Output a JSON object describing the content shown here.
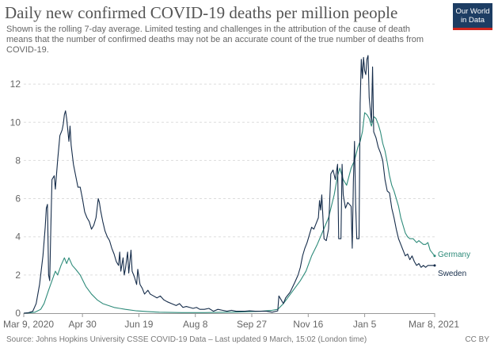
{
  "header": {
    "title": "Daily new confirmed COVID-19 deaths per million people",
    "subtitle": "Shown is the rolling 7-day average. Limited testing and challenges in the attribution of the cause of death means that the number of confirmed deaths may not be an accurate count of the true number of deaths from COVID-19.",
    "logo_line1": "Our World",
    "logo_line2": "in Data"
  },
  "footer": {
    "source": "Source: Johns Hopkins University CSSE COVID-19 Data – Last updated 9 March, 15:02 (London time)",
    "license": "CC BY"
  },
  "colors": {
    "germany": "#2e8b7a",
    "sweden": "#152c4a",
    "grid": "#dddddd",
    "axis": "#666666"
  },
  "chart_data": {
    "type": "line",
    "title": "Daily new confirmed COVID-19 deaths per million people",
    "xlabel": "",
    "ylabel": "",
    "xlim": [
      0,
      364
    ],
    "ylim": [
      0,
      13.5
    ],
    "yticks": [
      0,
      2,
      4,
      6,
      8,
      10,
      12
    ],
    "xticks": [
      {
        "day": 0,
        "label": "Mar 9, 2020"
      },
      {
        "day": 52,
        "label": "Apr 30"
      },
      {
        "day": 102,
        "label": "Jun 19"
      },
      {
        "day": 152,
        "label": "Aug 8"
      },
      {
        "day": 202,
        "label": "Sep 27"
      },
      {
        "day": 252,
        "label": "Nov 16"
      },
      {
        "day": 302,
        "label": "Jan 5"
      },
      {
        "day": 364,
        "label": "Mar 8, 2021"
      }
    ],
    "grid": "horizontal",
    "legend": "labels at line ends (right)",
    "series": [
      {
        "name": "Germany",
        "color": "#2e8b7a",
        "points": [
          [
            0,
            0
          ],
          [
            5,
            0.02
          ],
          [
            10,
            0.05
          ],
          [
            15,
            0.2
          ],
          [
            18,
            0.5
          ],
          [
            22,
            1.2
          ],
          [
            25,
            1.7
          ],
          [
            28,
            2.2
          ],
          [
            30,
            2.0
          ],
          [
            33,
            2.5
          ],
          [
            36,
            2.9
          ],
          [
            38,
            2.6
          ],
          [
            40,
            2.9
          ],
          [
            43,
            2.5
          ],
          [
            46,
            2.3
          ],
          [
            50,
            2.0
          ],
          [
            55,
            1.4
          ],
          [
            60,
            1.0
          ],
          [
            65,
            0.7
          ],
          [
            70,
            0.5
          ],
          [
            75,
            0.4
          ],
          [
            80,
            0.3
          ],
          [
            85,
            0.25
          ],
          [
            90,
            0.2
          ],
          [
            100,
            0.12
          ],
          [
            110,
            0.08
          ],
          [
            120,
            0.05
          ],
          [
            130,
            0.04
          ],
          [
            140,
            0.03
          ],
          [
            150,
            0.03
          ],
          [
            160,
            0.03
          ],
          [
            170,
            0.04
          ],
          [
            180,
            0.05
          ],
          [
            190,
            0.06
          ],
          [
            200,
            0.08
          ],
          [
            210,
            0.1
          ],
          [
            220,
            0.15
          ],
          [
            225,
            0.2
          ],
          [
            230,
            0.5
          ],
          [
            235,
            0.9
          ],
          [
            240,
            1.3
          ],
          [
            245,
            1.7
          ],
          [
            250,
            2.2
          ],
          [
            255,
            3.0
          ],
          [
            260,
            3.6
          ],
          [
            265,
            4.3
          ],
          [
            270,
            5.0
          ],
          [
            275,
            6.2
          ],
          [
            278,
            7.2
          ],
          [
            280,
            7.6
          ],
          [
            283,
            7.0
          ],
          [
            286,
            6.7
          ],
          [
            290,
            7.6
          ],
          [
            293,
            8.0
          ],
          [
            296,
            8.7
          ],
          [
            298,
            9.0
          ],
          [
            300,
            9.5
          ],
          [
            302,
            10.5
          ],
          [
            304,
            10.4
          ],
          [
            306,
            10.2
          ],
          [
            308,
            9.8
          ],
          [
            310,
            10.3
          ],
          [
            312,
            10.2
          ],
          [
            314,
            9.9
          ],
          [
            316,
            9.5
          ],
          [
            318,
            8.9
          ],
          [
            320,
            8.5
          ],
          [
            322,
            7.9
          ],
          [
            324,
            7.2
          ],
          [
            326,
            6.7
          ],
          [
            328,
            6.4
          ],
          [
            330,
            6.0
          ],
          [
            332,
            5.6
          ],
          [
            334,
            5.0
          ],
          [
            336,
            4.6
          ],
          [
            338,
            4.2
          ],
          [
            340,
            4.0
          ],
          [
            342,
            3.9
          ],
          [
            345,
            3.9
          ],
          [
            348,
            3.7
          ],
          [
            350,
            3.8
          ],
          [
            352,
            3.7
          ],
          [
            354,
            3.6
          ],
          [
            356,
            3.6
          ],
          [
            358,
            3.7
          ],
          [
            360,
            3.3
          ],
          [
            364,
            3.0
          ]
        ]
      },
      {
        "name": "Sweden",
        "color": "#152c4a",
        "points": [
          [
            0,
            0
          ],
          [
            4,
            0.02
          ],
          [
            8,
            0.1
          ],
          [
            11,
            0.5
          ],
          [
            14,
            1.5
          ],
          [
            17,
            3.0
          ],
          [
            19,
            4.5
          ],
          [
            20,
            5.5
          ],
          [
            21,
            5.7
          ],
          [
            22,
            2.0
          ],
          [
            23,
            1.7
          ],
          [
            24,
            4.5
          ],
          [
            25,
            7.0
          ],
          [
            27,
            7.2
          ],
          [
            28,
            6.5
          ],
          [
            30,
            8.0
          ],
          [
            32,
            9.3
          ],
          [
            34,
            9.6
          ],
          [
            35,
            9.9
          ],
          [
            36,
            10.4
          ],
          [
            37,
            10.6
          ],
          [
            38,
            10.2
          ],
          [
            40,
            9.0
          ],
          [
            41,
            9.8
          ],
          [
            42,
            8.8
          ],
          [
            44,
            7.8
          ],
          [
            46,
            7.2
          ],
          [
            48,
            6.6
          ],
          [
            50,
            6.6
          ],
          [
            52,
            6.0
          ],
          [
            54,
            5.3
          ],
          [
            56,
            5.0
          ],
          [
            58,
            4.8
          ],
          [
            60,
            4.4
          ],
          [
            62,
            4.6
          ],
          [
            64,
            5.0
          ],
          [
            66,
            6.0
          ],
          [
            67,
            5.8
          ],
          [
            68,
            5.4
          ],
          [
            70,
            4.8
          ],
          [
            72,
            4.3
          ],
          [
            74,
            4.0
          ],
          [
            76,
            3.8
          ],
          [
            78,
            3.4
          ],
          [
            80,
            3.1
          ],
          [
            82,
            2.7
          ],
          [
            84,
            2.5
          ],
          [
            85,
            3.2
          ],
          [
            86,
            2.2
          ],
          [
            88,
            2.9
          ],
          [
            89,
            2.0
          ],
          [
            90,
            2.3
          ],
          [
            92,
            3.2
          ],
          [
            93,
            2.1
          ],
          [
            95,
            3.3
          ],
          [
            96,
            2.2
          ],
          [
            98,
            1.9
          ],
          [
            100,
            1.5
          ],
          [
            101,
            2.3
          ],
          [
            103,
            1.5
          ],
          [
            105,
            1.3
          ],
          [
            107,
            1.0
          ],
          [
            110,
            1.2
          ],
          [
            112,
            1.0
          ],
          [
            115,
            0.9
          ],
          [
            118,
            0.8
          ],
          [
            121,
            0.9
          ],
          [
            124,
            0.7
          ],
          [
            127,
            0.6
          ],
          [
            131,
            0.5
          ],
          [
            135,
            0.4
          ],
          [
            138,
            0.5
          ],
          [
            141,
            0.3
          ],
          [
            144,
            0.35
          ],
          [
            147,
            0.3
          ],
          [
            150,
            0.25
          ],
          [
            153,
            0.3
          ],
          [
            156,
            0.2
          ],
          [
            160,
            0.2
          ],
          [
            164,
            0.25
          ],
          [
            168,
            0.1
          ],
          [
            172,
            0.2
          ],
          [
            176,
            0.15
          ],
          [
            180,
            0.1
          ],
          [
            184,
            0.15
          ],
          [
            188,
            0.1
          ],
          [
            192,
            0.1
          ],
          [
            196,
            0.1
          ],
          [
            200,
            0.12
          ],
          [
            205,
            0.1
          ],
          [
            210,
            0.1
          ],
          [
            215,
            0.1
          ],
          [
            220,
            0.05
          ],
          [
            225,
            0.12
          ],
          [
            226,
            0.9
          ],
          [
            230,
            0.5
          ],
          [
            232,
            0.8
          ],
          [
            236,
            1.1
          ],
          [
            240,
            1.6
          ],
          [
            243,
            2.0
          ],
          [
            245,
            2.4
          ],
          [
            247,
            3.0
          ],
          [
            249,
            3.4
          ],
          [
            251,
            3.7
          ],
          [
            253,
            4.1
          ],
          [
            255,
            4.5
          ],
          [
            257,
            4.4
          ],
          [
            259,
            4.7
          ],
          [
            261,
            5.0
          ],
          [
            262,
            5.9
          ],
          [
            263,
            5.4
          ],
          [
            264,
            6.2
          ],
          [
            266,
            3.9
          ],
          [
            268,
            3.8
          ],
          [
            270,
            4.4
          ],
          [
            272,
            7.3
          ],
          [
            274,
            7.5
          ],
          [
            276,
            7.0
          ],
          [
            278,
            7.8
          ],
          [
            279,
            3.9
          ],
          [
            281,
            3.9
          ],
          [
            282,
            7.8
          ],
          [
            283,
            6.2
          ],
          [
            285,
            5.5
          ],
          [
            287,
            5.8
          ],
          [
            290,
            5.6
          ],
          [
            291,
            3.4
          ],
          [
            292,
            6.9
          ],
          [
            293,
            9.0
          ],
          [
            294,
            5.7
          ],
          [
            295,
            3.9
          ],
          [
            297,
            3.9
          ],
          [
            298,
            11.0
          ],
          [
            299,
            13.3
          ],
          [
            300,
            12.3
          ],
          [
            301,
            13.4
          ],
          [
            302,
            12.7
          ],
          [
            303,
            12.5
          ],
          [
            304,
            13.3
          ],
          [
            305,
            13.5
          ],
          [
            306,
            11.3
          ],
          [
            308,
            10.0
          ],
          [
            309,
            12.9
          ],
          [
            310,
            9.5
          ],
          [
            312,
            9.2
          ],
          [
            314,
            8.7
          ],
          [
            316,
            8.4
          ],
          [
            318,
            8.0
          ],
          [
            320,
            7.0
          ],
          [
            322,
            6.4
          ],
          [
            324,
            6.3
          ],
          [
            326,
            5.5
          ],
          [
            328,
            5.0
          ],
          [
            330,
            4.4
          ],
          [
            332,
            3.9
          ],
          [
            334,
            3.6
          ],
          [
            336,
            3.3
          ],
          [
            338,
            3.0
          ],
          [
            340,
            3.1
          ],
          [
            342,
            2.8
          ],
          [
            344,
            3.0
          ],
          [
            346,
            2.7
          ],
          [
            348,
            2.5
          ],
          [
            350,
            2.6
          ],
          [
            352,
            2.4
          ],
          [
            354,
            2.5
          ],
          [
            356,
            2.4
          ],
          [
            358,
            2.5
          ],
          [
            360,
            2.5
          ],
          [
            364,
            2.5
          ]
        ]
      }
    ]
  }
}
